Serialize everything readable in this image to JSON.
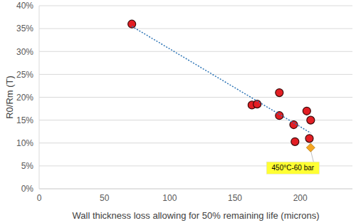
{
  "chart_data": {
    "type": "scatter",
    "x_label": "Wall thickness loss allowing for 50% remaining life  (microns)",
    "y_label": "R0/Rm (T)",
    "xlim": [
      0,
      240
    ],
    "xticks": [
      0,
      50,
      100,
      150,
      200
    ],
    "ylim": [
      0,
      40
    ],
    "yticks": [
      {
        "value": 0,
        "label": "0%"
      },
      {
        "value": 5,
        "label": "5%"
      },
      {
        "value": 10,
        "label": "10%"
      },
      {
        "value": 15,
        "label": "15%"
      },
      {
        "value": 20,
        "label": "20%"
      },
      {
        "value": 25,
        "label": "25%"
      },
      {
        "value": 30,
        "label": "30%"
      },
      {
        "value": 35,
        "label": "35%"
      },
      {
        "value": 40,
        "label": "40%"
      }
    ],
    "grid": true,
    "series": [
      {
        "color": "#e31e24",
        "marker": "circle",
        "x": [
          71,
          163,
          167,
          184,
          184,
          195,
          196,
          205,
          208,
          207
        ],
        "values": [
          36,
          18.3,
          18.5,
          21,
          16,
          14,
          10.3,
          17,
          15,
          11
        ]
      },
      {
        "color": "#f5a623",
        "marker": "diamond",
        "x": [
          208
        ],
        "values": [
          9
        ],
        "label": "450°C-60 bar"
      },
      {
        "type": "line",
        "color": "#2e75b6",
        "line_style": "dotted",
        "x": [
          71,
          208
        ],
        "values": [
          35.5,
          12.2
        ]
      }
    ]
  }
}
